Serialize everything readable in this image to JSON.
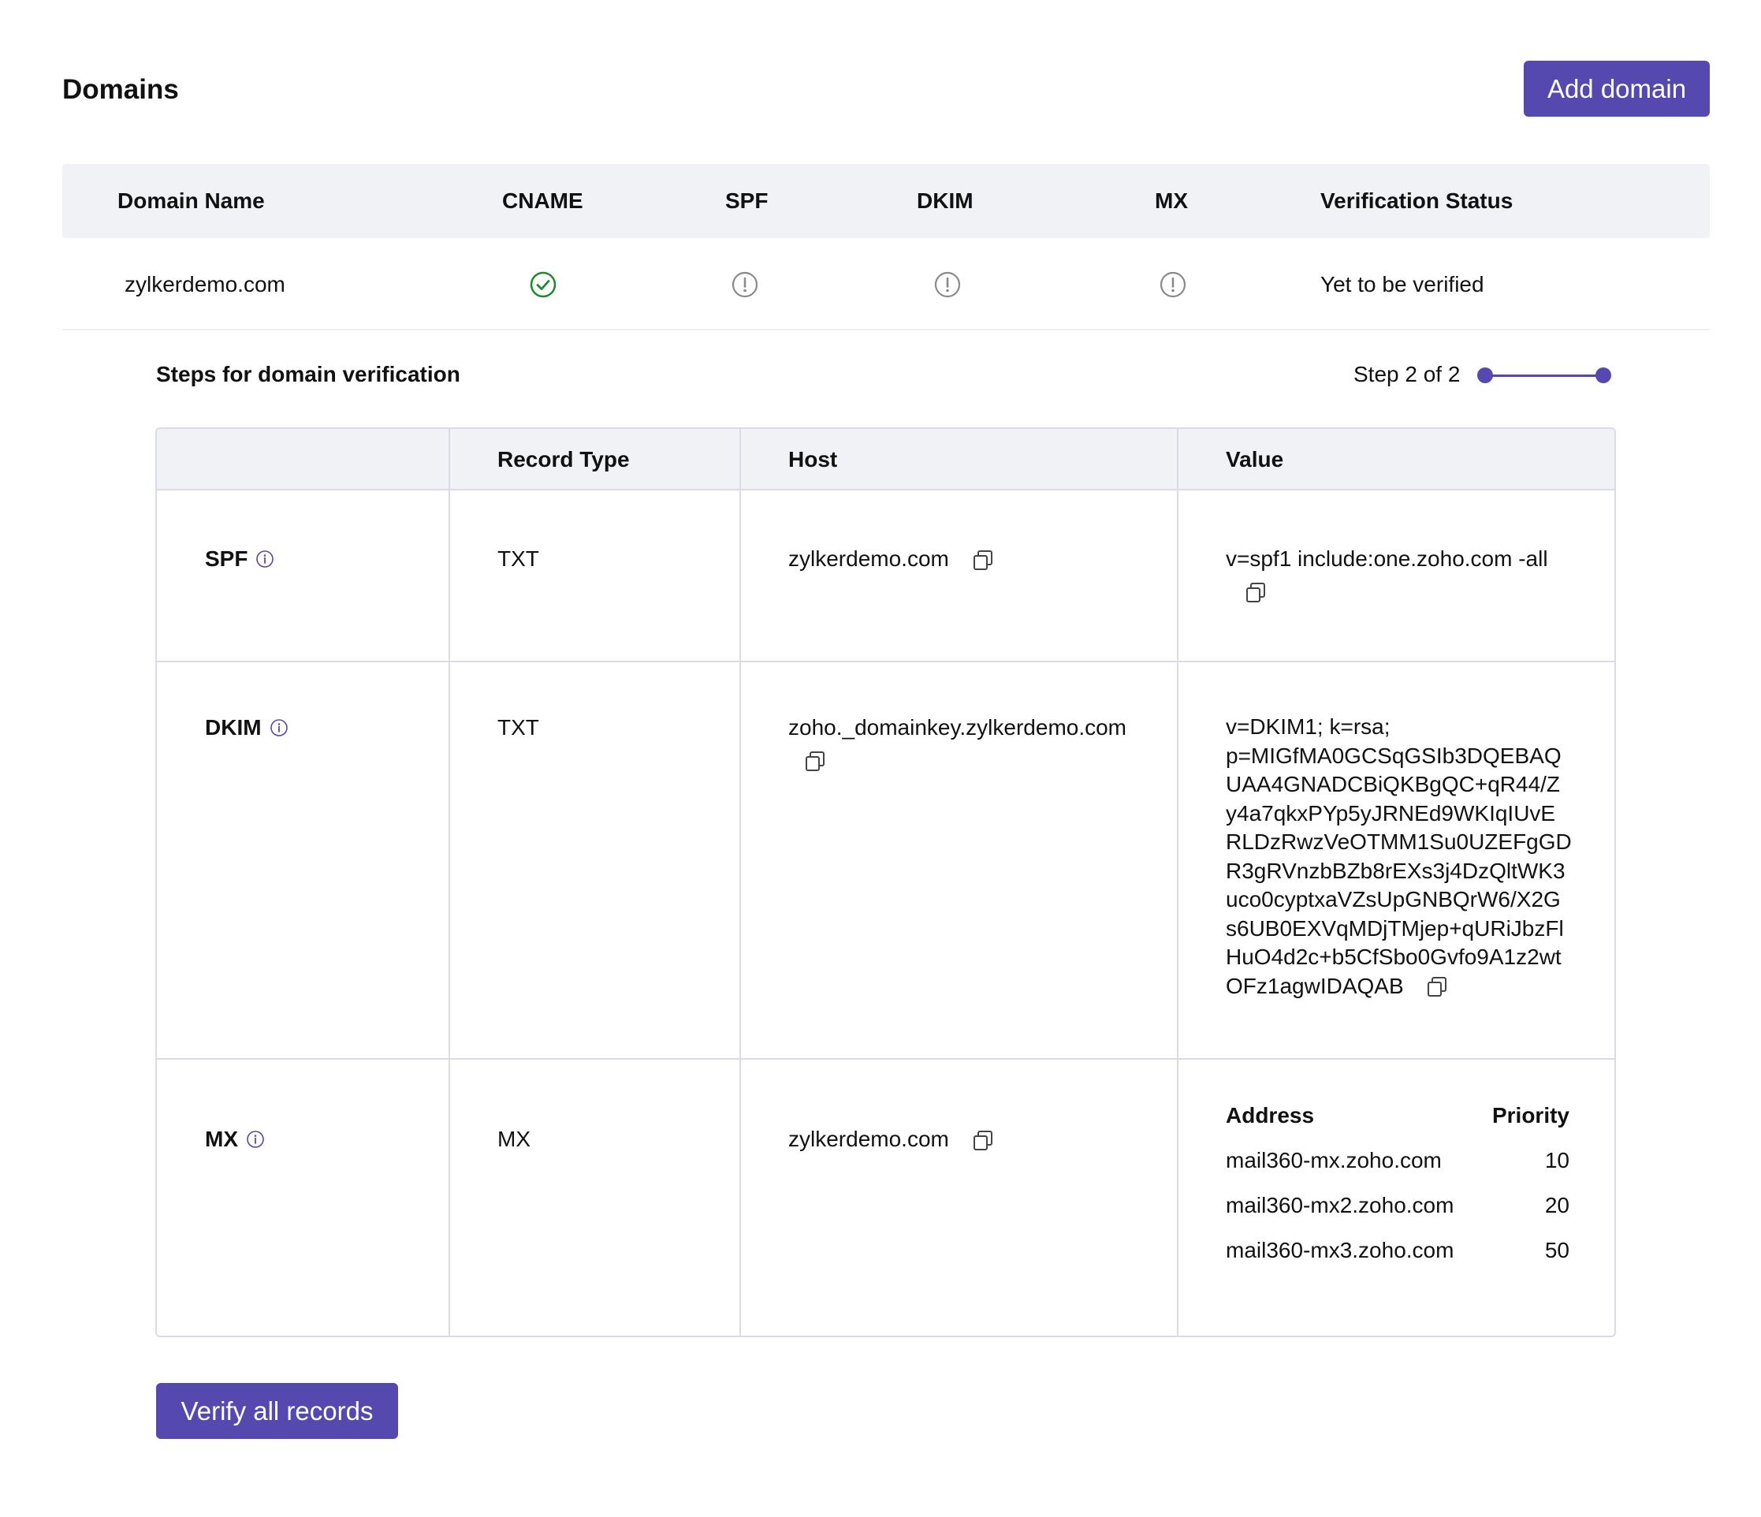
{
  "page": {
    "title": "Domains",
    "add_domain_label": "Add domain",
    "accent_color": "#5549b0"
  },
  "domains_table": {
    "headers": [
      "Domain Name",
      "CNAME",
      "SPF",
      "DKIM",
      "MX",
      "Verification Status"
    ],
    "rows": [
      {
        "domain": "zylkerdemo.com",
        "cname_status": "check-circle-icon",
        "spf_status": "exclamation-circle-icon",
        "dkim_status": "exclamation-circle-icon",
        "mx_status": "exclamation-circle-icon",
        "verification_status": "Yet to be verified"
      }
    ]
  },
  "steps": {
    "title": "Steps for domain verification",
    "step_label": "Step 2 of 2",
    "current_step": 2,
    "total_steps": 2
  },
  "records_table": {
    "headers": [
      "",
      "Record Type",
      "Host",
      "Value"
    ],
    "spf": {
      "label": "SPF",
      "record_type": "TXT",
      "host": "zylkerdemo.com",
      "value": "v=spf1 include:one.zoho.com -all"
    },
    "dkim": {
      "label": "DKIM",
      "record_type": "TXT",
      "host": "zoho._domainkey.zylkerdemo.com",
      "value_lines": [
        "v=DKIM1; k=rsa;",
        "p=MIGfMA0GCSqGSIb3DQEBAQ",
        "UAA4GNADCBiQKBgQC+qR44/Z",
        "y4a7qkxPYp5yJRNEd9WKIqIUvE",
        "RLDzRwzVeOTMM1Su0UZEFgGD",
        "R3gRVnzbBZb8rEXs3j4DzQltWK3",
        "uco0cyptxaVZsUpGNBQrW6/X2G",
        "s6UB0EXVqMDjTMjep+qURiJbzFl",
        "HuO4d2c+b5CfSbo0Gvfo9A1z2wt",
        "OFz1agwIDAQAB"
      ]
    },
    "mx": {
      "label": "MX",
      "record_type": "MX",
      "host": "zylkerdemo.com",
      "address_header": "Address",
      "priority_header": "Priority",
      "entries": [
        {
          "address": "mail360-mx.zoho.com",
          "priority": "10"
        },
        {
          "address": "mail360-mx2.zoho.com",
          "priority": "20"
        },
        {
          "address": "mail360-mx3.zoho.com",
          "priority": "50"
        }
      ]
    }
  },
  "verify_label": "Verify all records"
}
